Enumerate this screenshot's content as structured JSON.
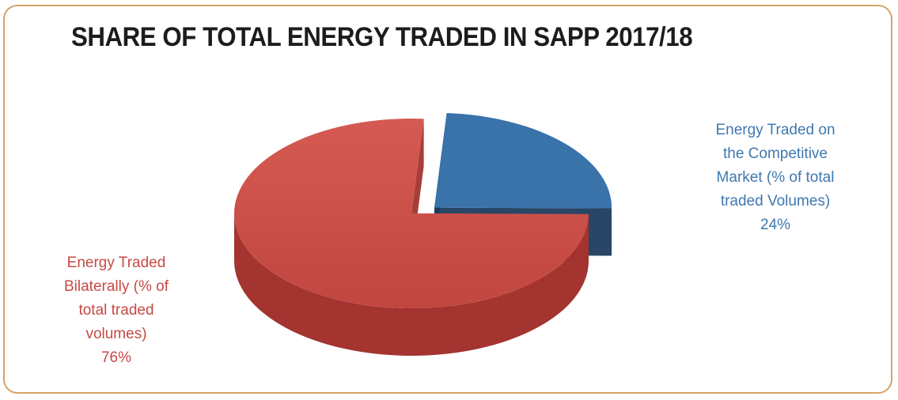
{
  "chart_data": {
    "type": "pie",
    "title": "SHARE OF TOTAL ENERGY TRADED IN SAPP 2017/18",
    "slices": [
      {
        "label_lines": [
          "Energy Traded",
          "Bilaterally (% of",
          "total traded",
          "volumes)"
        ],
        "value": 76,
        "value_label": "76%",
        "color": "#cc4b44",
        "side_color": "#a3342f"
      },
      {
        "label_lines": [
          "Energy Traded on",
          "the Competitive",
          "Market (% of total",
          "traded Volumes)"
        ],
        "value": 24,
        "value_label": "24%",
        "color": "#3a72aa",
        "side_color": "#1d3c5e",
        "exploded": true
      }
    ],
    "style": "3d-exploded"
  },
  "colors": {
    "frame_border": "#d9a06a",
    "title": "#1c1c1c",
    "label_red": "#c64a44",
    "label_blue": "#3f78b0"
  }
}
